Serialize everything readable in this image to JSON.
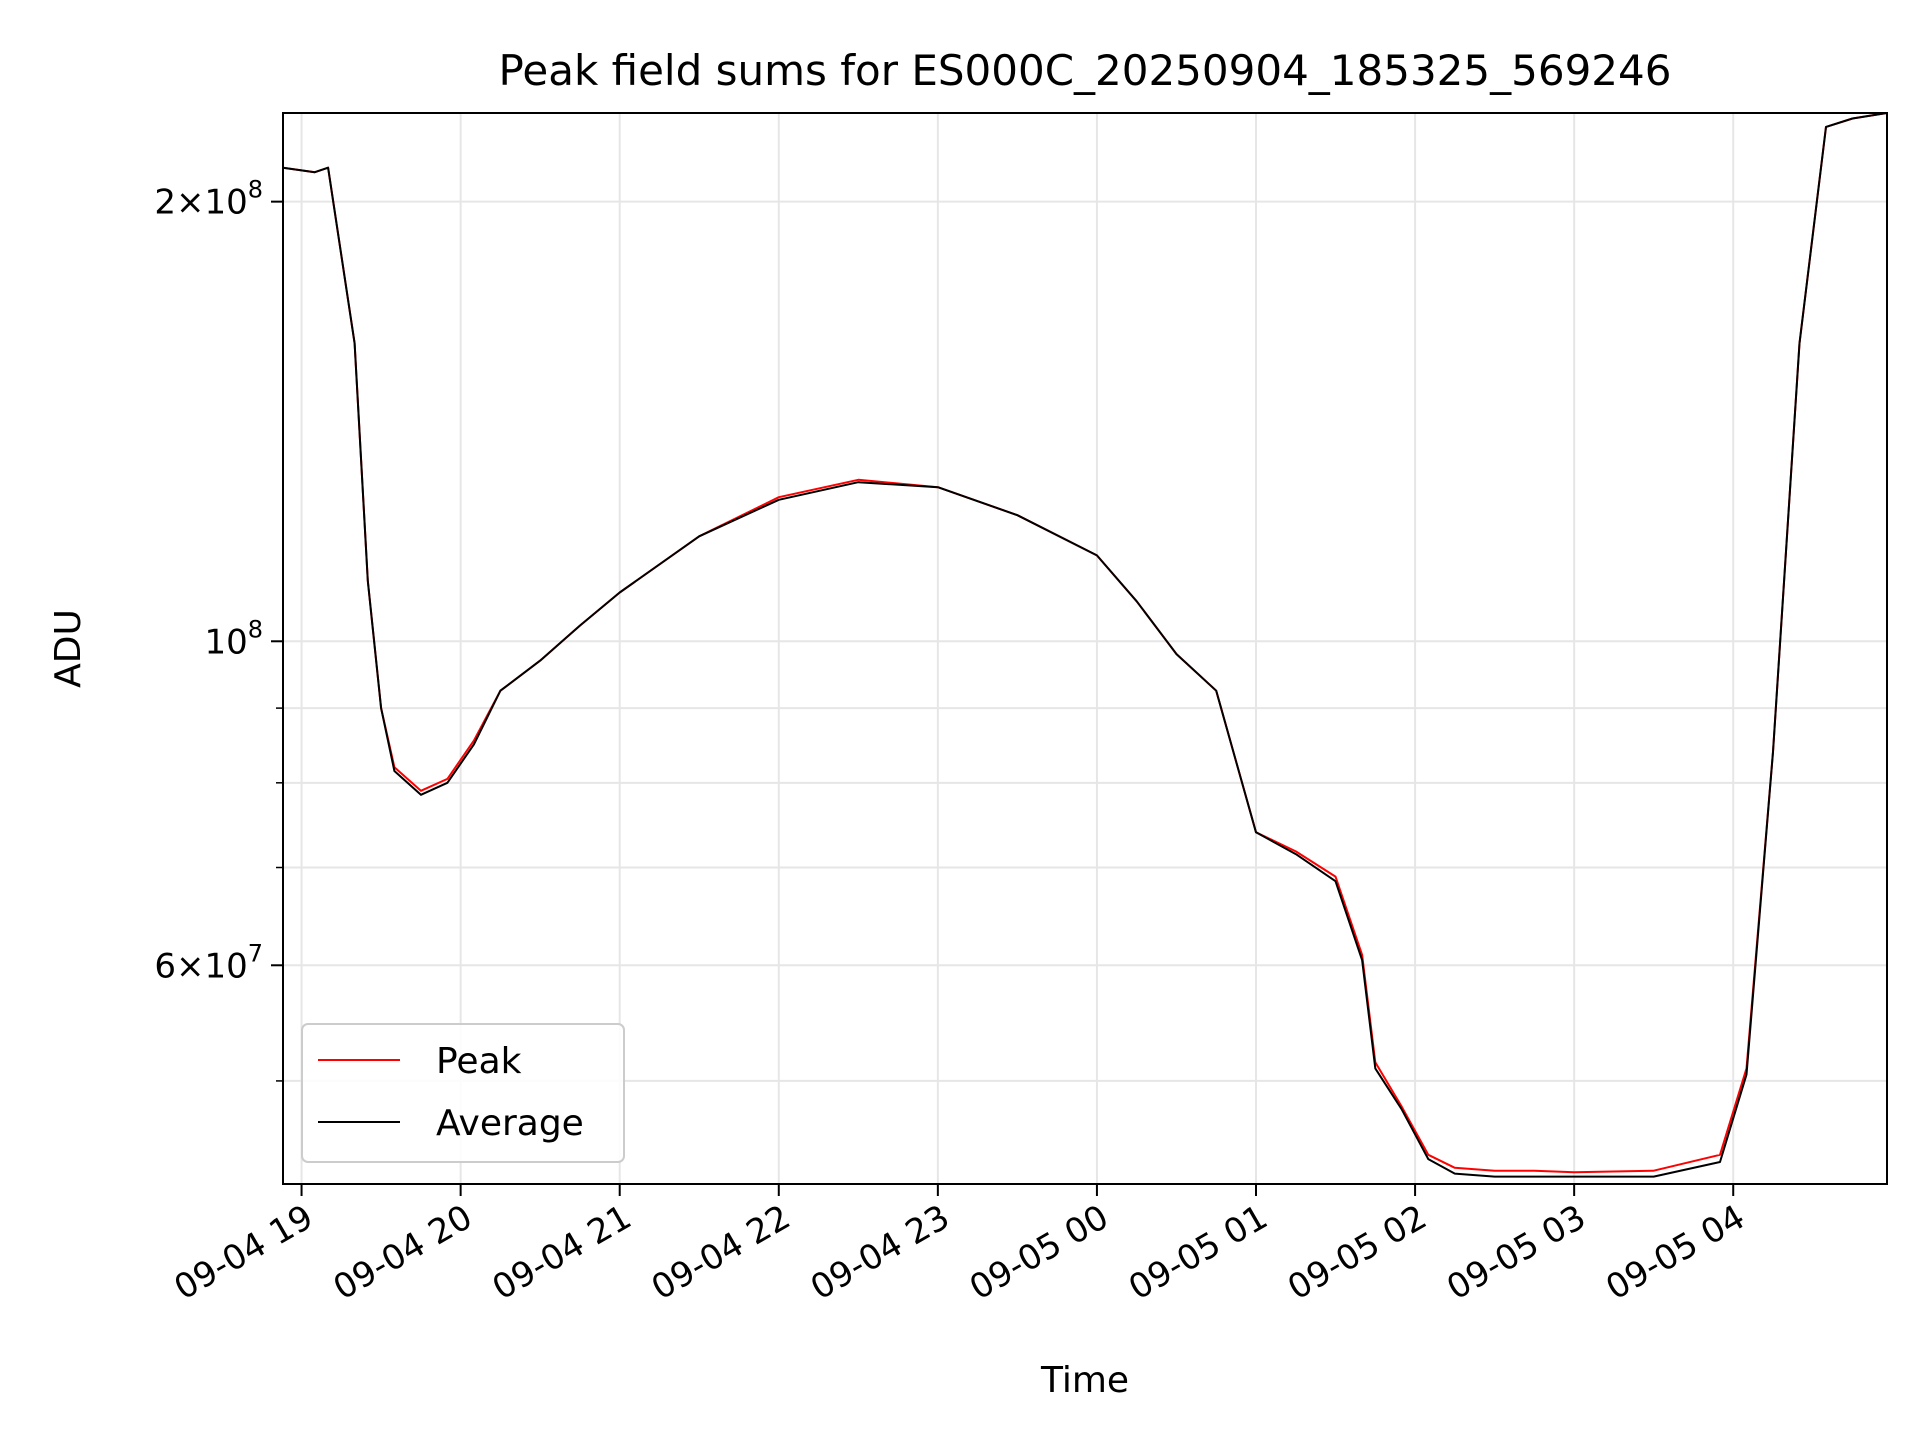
{
  "chart_data": {
    "type": "line",
    "title": "Peak field sums for ES000C_20250904_185325_569246",
    "xlabel": "Time",
    "ylabel": "ADU",
    "x_scale": "time",
    "y_scale": "log",
    "xlim": [
      "2025-09-04 18:53",
      "2025-09-05 04:58"
    ],
    "ylim": [
      42500000,
      230000000
    ],
    "x_ticks": [
      {
        "t": "2025-09-04 19:00",
        "label": "09-04 19"
      },
      {
        "t": "2025-09-04 20:00",
        "label": "09-04 20"
      },
      {
        "t": "2025-09-04 21:00",
        "label": "09-04 21"
      },
      {
        "t": "2025-09-04 22:00",
        "label": "09-04 22"
      },
      {
        "t": "2025-09-04 23:00",
        "label": "09-04 23"
      },
      {
        "t": "2025-09-05 00:00",
        "label": "09-05 00"
      },
      {
        "t": "2025-09-05 01:00",
        "label": "09-05 01"
      },
      {
        "t": "2025-09-05 02:00",
        "label": "09-05 02"
      },
      {
        "t": "2025-09-05 03:00",
        "label": "09-05 03"
      },
      {
        "t": "2025-09-05 04:00",
        "label": "09-05 04"
      }
    ],
    "y_major_ticks": [
      {
        "value": 60000000,
        "mant": "6",
        "exp": "7"
      },
      {
        "value": 100000000,
        "mant": "",
        "exp": "8"
      },
      {
        "value": 200000000,
        "mant": "2",
        "exp": "8"
      }
    ],
    "y_minor_ticks": [
      50000000,
      70000000,
      80000000,
      90000000
    ],
    "grid": true,
    "legend_position": "lower-left",
    "series": [
      {
        "name": "Peak",
        "color": "#ff0000",
        "x": [
          "2025-09-04 18:53",
          "2025-09-04 19:05",
          "2025-09-04 19:10",
          "2025-09-04 19:20",
          "2025-09-04 19:25",
          "2025-09-04 19:30",
          "2025-09-04 19:35",
          "2025-09-04 19:45",
          "2025-09-04 19:55",
          "2025-09-04 20:05",
          "2025-09-04 20:15",
          "2025-09-04 20:30",
          "2025-09-04 20:45",
          "2025-09-04 21:00",
          "2025-09-04 21:30",
          "2025-09-04 22:00",
          "2025-09-04 22:30",
          "2025-09-04 23:00",
          "2025-09-04 23:30",
          "2025-09-05 00:00",
          "2025-09-05 00:15",
          "2025-09-05 00:30",
          "2025-09-05 00:45",
          "2025-09-05 01:00",
          "2025-09-05 01:15",
          "2025-09-05 01:30",
          "2025-09-05 01:40",
          "2025-09-05 01:45",
          "2025-09-05 01:55",
          "2025-09-05 02:05",
          "2025-09-05 02:15",
          "2025-09-05 02:30",
          "2025-09-05 02:45",
          "2025-09-05 03:00",
          "2025-09-05 03:30",
          "2025-09-05 03:55",
          "2025-09-05 04:05",
          "2025-09-05 04:15",
          "2025-09-05 04:25",
          "2025-09-05 04:35",
          "2025-09-05 04:45",
          "2025-09-05 04:58"
        ],
        "values": [
          211000000,
          209500000,
          211000000,
          160000000,
          110000000,
          90000000,
          82000000,
          79000000,
          80500000,
          85500000,
          92500000,
          97000000,
          102500000,
          108000000,
          118000000,
          125500000,
          129000000,
          127500000,
          122000000,
          114500000,
          106500000,
          98000000,
          92500000,
          74000000,
          71800000,
          69000000,
          61000000,
          51500000,
          48000000,
          44500000,
          43600000,
          43400000,
          43400000,
          43300000,
          43400000,
          44500000,
          51000000,
          84000000,
          160000000,
          225000000,
          228000000,
          230000000
        ]
      },
      {
        "name": "Average",
        "color": "#000000",
        "x": [
          "2025-09-04 18:53",
          "2025-09-04 19:05",
          "2025-09-04 19:10",
          "2025-09-04 19:20",
          "2025-09-04 19:25",
          "2025-09-04 19:30",
          "2025-09-04 19:35",
          "2025-09-04 19:45",
          "2025-09-04 19:55",
          "2025-09-04 20:05",
          "2025-09-04 20:15",
          "2025-09-04 20:30",
          "2025-09-04 20:45",
          "2025-09-04 21:00",
          "2025-09-04 21:30",
          "2025-09-04 22:00",
          "2025-09-04 22:30",
          "2025-09-04 23:00",
          "2025-09-04 23:30",
          "2025-09-05 00:00",
          "2025-09-05 00:15",
          "2025-09-05 00:30",
          "2025-09-05 00:45",
          "2025-09-05 01:00",
          "2025-09-05 01:15",
          "2025-09-05 01:30",
          "2025-09-05 01:40",
          "2025-09-05 01:45",
          "2025-09-05 01:55",
          "2025-09-05 02:05",
          "2025-09-05 02:15",
          "2025-09-05 02:30",
          "2025-09-05 02:45",
          "2025-09-05 03:00",
          "2025-09-05 03:30",
          "2025-09-05 03:55",
          "2025-09-05 04:05",
          "2025-09-05 04:15",
          "2025-09-05 04:25",
          "2025-09-05 04:35",
          "2025-09-05 04:45",
          "2025-09-05 04:58"
        ],
        "values": [
          211000000,
          209500000,
          211000000,
          160000000,
          110000000,
          90000000,
          81500000,
          78500000,
          80000000,
          85000000,
          92500000,
          97000000,
          102500000,
          108000000,
          118000000,
          125000000,
          128500000,
          127500000,
          122000000,
          114500000,
          106500000,
          98000000,
          92500000,
          74000000,
          71500000,
          68500000,
          60500000,
          51000000,
          47800000,
          44200000,
          43200000,
          43000000,
          43000000,
          43000000,
          43000000,
          44000000,
          50500000,
          84000000,
          160000000,
          225000000,
          228000000,
          230000000
        ]
      }
    ]
  }
}
